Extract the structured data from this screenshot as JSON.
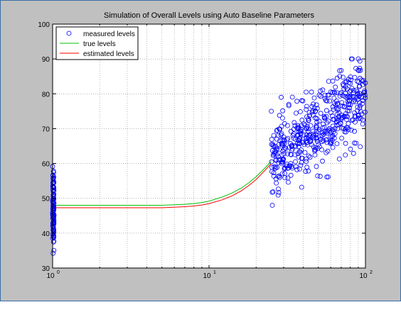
{
  "chart_data": {
    "type": "scatter",
    "title": "Simulation of Overall Levels using Auto Baseline Parameters",
    "xlabel": "",
    "ylabel": "",
    "xscale": "log",
    "xlim": [
      1,
      100
    ],
    "ylim": [
      30,
      100
    ],
    "grid": true,
    "legend_position": "top-left",
    "x_ticks": [
      {
        "value": 1,
        "base": "10",
        "exp": "0"
      },
      {
        "value": 10,
        "base": "10",
        "exp": "1"
      },
      {
        "value": 100,
        "base": "10",
        "exp": "2"
      }
    ],
    "y_ticks": [
      "30",
      "40",
      "50",
      "60",
      "70",
      "80",
      "90",
      "100"
    ],
    "series": [
      {
        "name": "measured levels",
        "kind": "markers",
        "color": "#0000ff",
        "clusters": [
          {
            "x_range": [
              1,
              1.02
            ],
            "y_mean": 47.5,
            "y_sd": 5.5,
            "y_min": 32,
            "y_max": 62,
            "count": 110
          },
          {
            "x_range": [
              25,
              100
            ],
            "y_start": 60,
            "y_end": 80,
            "y_sd": 5.5,
            "y_min": 48,
            "y_max": 90,
            "count": 500
          }
        ]
      },
      {
        "name": "true levels",
        "kind": "line",
        "color": "#00c000",
        "x": [
          1,
          5,
          7,
          8,
          9,
          10,
          12,
          14,
          16,
          18,
          20,
          22,
          25
        ],
        "y": [
          48,
          48,
          48.3,
          48.5,
          48.8,
          49.2,
          50.3,
          51.5,
          52.9,
          54.5,
          56.2,
          58,
          60.6
        ]
      },
      {
        "name": "estimated levels",
        "kind": "line",
        "color": "#ff0000",
        "x": [
          1,
          5,
          7,
          8,
          9,
          10,
          12,
          14,
          16,
          18,
          20,
          22,
          25
        ],
        "y": [
          47.3,
          47.3,
          47.6,
          47.8,
          48.1,
          48.5,
          49.5,
          50.7,
          52.1,
          53.7,
          55.4,
          57.3,
          60
        ]
      }
    ]
  }
}
